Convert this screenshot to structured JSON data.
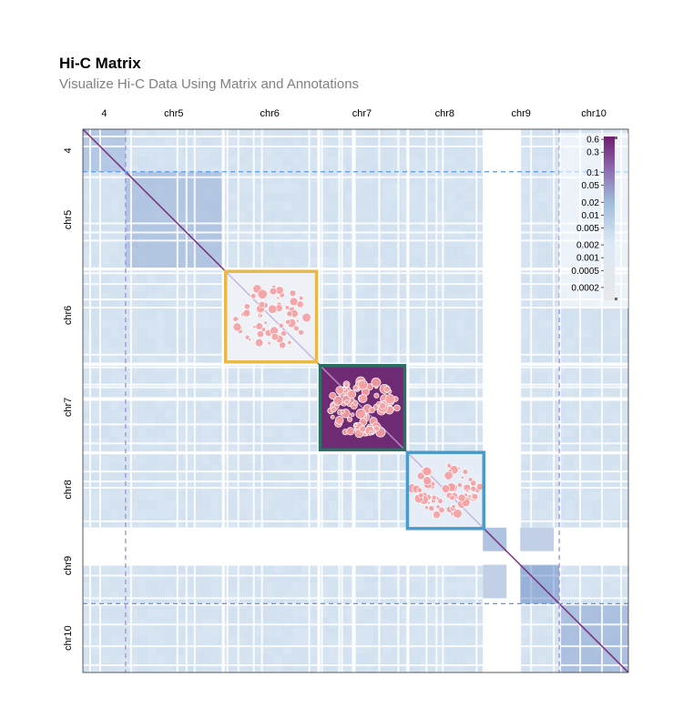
{
  "header": {
    "title": "Hi-C Matrix",
    "subtitle": "Visualize Hi-C Data Using Matrix and Annotations"
  },
  "chart_data": {
    "type": "heatmap",
    "chromosomes": [
      {
        "name": "chr4",
        "label": "4",
        "start": 0,
        "end": 47
      },
      {
        "name": "chr5",
        "label": "chr5",
        "start": 47,
        "end": 153
      },
      {
        "name": "chr6",
        "label": "chr6",
        "start": 153,
        "end": 258
      },
      {
        "name": "chr7",
        "label": "chr7",
        "start": 258,
        "end": 356
      },
      {
        "name": "chr8",
        "label": "chr8",
        "start": 356,
        "end": 440
      },
      {
        "name": "chr9",
        "label": "chr9",
        "start": 440,
        "end": 524
      },
      {
        "name": "chr10",
        "label": "chr10",
        "start": 524,
        "end": 600
      }
    ],
    "axis_range": [
      0,
      600
    ],
    "empty_bands": [
      [
        440,
        481
      ],
      [
        466,
        482
      ]
    ],
    "dashed_region": {
      "start": 47,
      "end": 524,
      "color": "#a18be6",
      "h_color": "#5b9be6"
    },
    "annotation_boxes": [
      {
        "chrom": "chr6",
        "start": 157,
        "end": 257,
        "color": "#e8b84a",
        "fill_level": 0.0002
      },
      {
        "chrom": "chr7",
        "start": 261,
        "end": 354,
        "color": "#2d6e64",
        "fill_level": 0.6
      },
      {
        "chrom": "chr8",
        "start": 357,
        "end": 441,
        "color": "#4b9acb",
        "fill_level": 0.001
      }
    ],
    "legend": {
      "placement": "top-right",
      "ticks": [
        "0.6",
        "0.3",
        "0.1",
        "0.05",
        "0.02",
        "0.01",
        "0.005",
        "0.002",
        "0.001",
        "0.0005",
        "0.0002"
      ],
      "tick_values": [
        0.6,
        0.3,
        0.1,
        0.05,
        0.02,
        0.01,
        0.005,
        0.002,
        0.001,
        0.0005,
        0.0002
      ],
      "min": 0.0001,
      "max": 0.7
    },
    "colors": {
      "low": "#dce8f4",
      "mid": "#9ebcdb",
      "high": "#6e1e6e",
      "point": "#f4a0a3",
      "point_stroke": "#ffffff"
    }
  }
}
